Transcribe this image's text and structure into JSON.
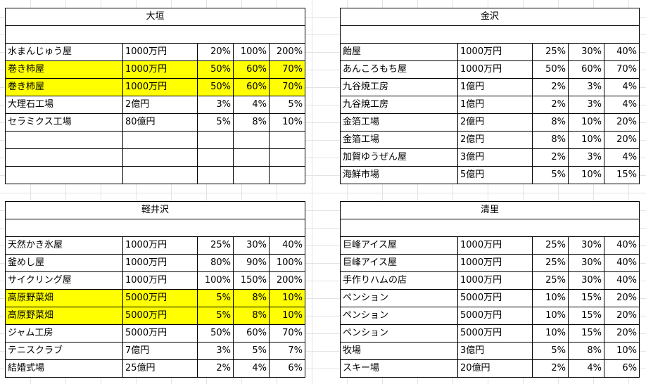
{
  "highlight_color": "#ffff00",
  "tables": {
    "ogaki": {
      "title": "大垣",
      "rows": [
        {
          "name": "水まんじゅう屋",
          "cost": "1000万円",
          "p1": "20%",
          "p2": "100%",
          "p3": "200%",
          "hl": false
        },
        {
          "name": "巻き柿屋",
          "cost": "1000万円",
          "p1": "50%",
          "p2": "60%",
          "p3": "70%",
          "hl": true
        },
        {
          "name": "巻き柿屋",
          "cost": "1000万円",
          "p1": "50%",
          "p2": "60%",
          "p3": "70%",
          "hl": true
        },
        {
          "name": "大理石工場",
          "cost": "2億円",
          "p1": "3%",
          "p2": "4%",
          "p3": "5%",
          "hl": false
        },
        {
          "name": "セラミクス工場",
          "cost": "80億円",
          "p1": "5%",
          "p2": "8%",
          "p3": "10%",
          "hl": false
        },
        {
          "name": "",
          "cost": "",
          "p1": "",
          "p2": "",
          "p3": "",
          "hl": false
        },
        {
          "name": "",
          "cost": "",
          "p1": "",
          "p2": "",
          "p3": "",
          "hl": false
        },
        {
          "name": "",
          "cost": "",
          "p1": "",
          "p2": "",
          "p3": "",
          "hl": false
        }
      ]
    },
    "kanazawa": {
      "title": "金沢",
      "rows": [
        {
          "name": "飴屋",
          "cost": "1000万円",
          "p1": "25%",
          "p2": "30%",
          "p3": "40%",
          "hl": false
        },
        {
          "name": "あんころもち屋",
          "cost": "1000万円",
          "p1": "50%",
          "p2": "60%",
          "p3": "70%",
          "hl": false
        },
        {
          "name": "九谷焼工房",
          "cost": "1億円",
          "p1": "2%",
          "p2": "3%",
          "p3": "4%",
          "hl": false
        },
        {
          "name": "九谷焼工房",
          "cost": "1億円",
          "p1": "2%",
          "p2": "3%",
          "p3": "4%",
          "hl": false
        },
        {
          "name": "金箔工場",
          "cost": "2億円",
          "p1": "8%",
          "p2": "10%",
          "p3": "20%",
          "hl": false
        },
        {
          "name": "金箔工場",
          "cost": "2億円",
          "p1": "8%",
          "p2": "10%",
          "p3": "20%",
          "hl": false
        },
        {
          "name": "加賀ゆうぜん屋",
          "cost": "3億円",
          "p1": "2%",
          "p2": "3%",
          "p3": "4%",
          "hl": false
        },
        {
          "name": "海鮮市場",
          "cost": "5億円",
          "p1": "5%",
          "p2": "10%",
          "p3": "15%",
          "hl": false
        }
      ]
    },
    "karuizawa": {
      "title": "軽井沢",
      "rows": [
        {
          "name": "天然かき氷屋",
          "cost": "1000万円",
          "p1": "25%",
          "p2": "30%",
          "p3": "40%",
          "hl": false
        },
        {
          "name": "釜めし屋",
          "cost": "1000万円",
          "p1": "80%",
          "p2": "90%",
          "p3": "100%",
          "hl": false
        },
        {
          "name": "サイクリング屋",
          "cost": "1000万円",
          "p1": "100%",
          "p2": "150%",
          "p3": "200%",
          "hl": false
        },
        {
          "name": "高原野菜畑",
          "cost": "5000万円",
          "p1": "5%",
          "p2": "8%",
          "p3": "10%",
          "hl": true
        },
        {
          "name": "高原野菜畑",
          "cost": "5000万円",
          "p1": "5%",
          "p2": "8%",
          "p3": "10%",
          "hl": true
        },
        {
          "name": "ジャム工房",
          "cost": "5000万円",
          "p1": "50%",
          "p2": "60%",
          "p3": "70%",
          "hl": false
        },
        {
          "name": "テニスクラブ",
          "cost": "7億円",
          "p1": "3%",
          "p2": "5%",
          "p3": "7%",
          "hl": false
        },
        {
          "name": "結婚式場",
          "cost": "25億円",
          "p1": "2%",
          "p2": "4%",
          "p3": "6%",
          "hl": false
        }
      ]
    },
    "kiyosato": {
      "title": "清里",
      "rows": [
        {
          "name": "巨峰アイス屋",
          "cost": "1000万円",
          "p1": "25%",
          "p2": "30%",
          "p3": "40%",
          "hl": false
        },
        {
          "name": "巨峰アイス屋",
          "cost": "1000万円",
          "p1": "25%",
          "p2": "30%",
          "p3": "40%",
          "hl": false
        },
        {
          "name": "手作りハムの店",
          "cost": "1000万円",
          "p1": "25%",
          "p2": "30%",
          "p3": "40%",
          "hl": false
        },
        {
          "name": "ペンション",
          "cost": "5000万円",
          "p1": "10%",
          "p2": "15%",
          "p3": "20%",
          "hl": false
        },
        {
          "name": "ペンション",
          "cost": "5000万円",
          "p1": "10%",
          "p2": "15%",
          "p3": "20%",
          "hl": false
        },
        {
          "name": "ペンション",
          "cost": "5000万円",
          "p1": "10%",
          "p2": "15%",
          "p3": "20%",
          "hl": false
        },
        {
          "name": "牧場",
          "cost": "3億円",
          "p1": "5%",
          "p2": "8%",
          "p3": "10%",
          "hl": false
        },
        {
          "name": "スキー場",
          "cost": "20億円",
          "p1": "2%",
          "p2": "4%",
          "p3": "6%",
          "hl": false
        }
      ]
    }
  }
}
